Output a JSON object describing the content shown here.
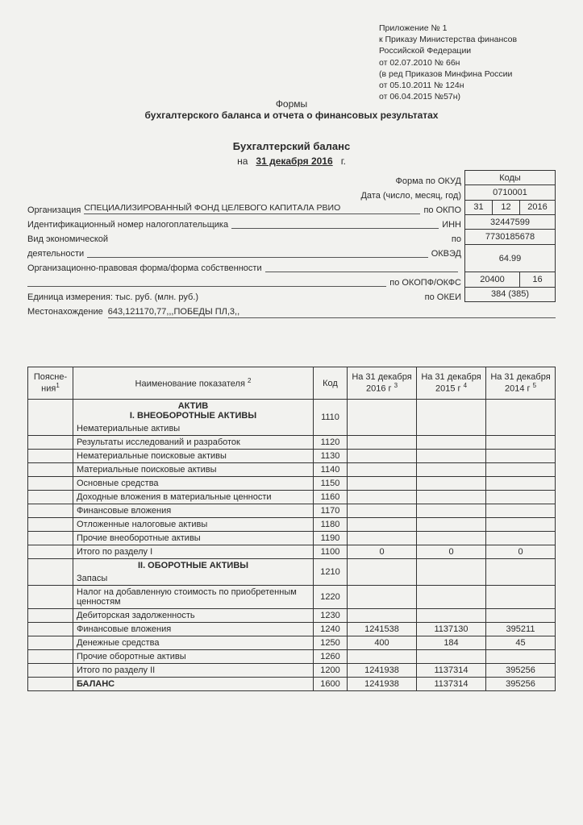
{
  "appendix": {
    "l1": "Приложение № 1",
    "l2": "к Приказу Министерства финансов",
    "l3": "Российской Федерации",
    "l4": "от 02.07.2010 № 66н",
    "l5": "(в ред Приказов Минфина России",
    "l6": "от 05.10.2011 № 124н",
    "l7": "от 06.04.2015 №57н)"
  },
  "form_block": {
    "l1": "Формы",
    "l2": "бухгалтерского баланса и отчета о финансовых результатах"
  },
  "balance_title": "Бухгалтерский баланс",
  "date_line": {
    "prefix": "на",
    "date": "31 декабря   2016",
    "suffix": "г."
  },
  "hdr": {
    "form_okud_label": "Форма по ОКУД",
    "date_label": "Дата (число, месяц, год)",
    "org_label": "Организация",
    "org_value": "СПЕЦИАЛИЗИРОВАННЫЙ ФОНД ЦЕЛЕВОГО КАПИТАЛА РВИО",
    "okpo_label": "по ОКПО",
    "inn_label_full": "Идентификационный номер налогоплательщика",
    "inn_label_code": "ИНН",
    "activity_l1": "Вид экономической",
    "activity_l2": "деятельности",
    "okved_label": "ОКВЭД",
    "po": "по",
    "legal_form_label": "Организационно-правовая форма/форма собственности",
    "okopf_label": "по ОКОПФ/ОКФС",
    "unit_label": "Единица измерения: тыс. руб. (млн. руб.)",
    "okei_label": "по ОКЕИ",
    "loc_label": "Местонахождение",
    "loc_value": "643,121170,77,,,ПОБЕДЫ ПЛ,3,,"
  },
  "codes": {
    "header": "Коды",
    "okud": "0710001",
    "d": "31",
    "m": "12",
    "y": "2016",
    "okpo": "32447599",
    "inn": "7730185678",
    "okved": "64.99",
    "okopf": "20400",
    "okfs": "16",
    "okei": "384 (385)"
  },
  "table": {
    "headers": {
      "note": "Поясне-\nния",
      "name": "Наименование показателя",
      "code": "Код",
      "c1_a": "На 31 декабря",
      "c1_b": "2016 г",
      "c2_a": "На 31 декабря",
      "c2_b": "2015 г",
      "c3_a": "На 31 декабря",
      "c3_b": "2014 г"
    },
    "section1_a": "АКТИВ",
    "section1_b": "I. ВНЕОБОРОТНЫЕ АКТИВЫ",
    "rows1": [
      {
        "name": "Нематериальные активы",
        "code": "1110"
      },
      {
        "name": "Результаты исследований и разработок",
        "code": "1120"
      },
      {
        "name": "Нематериальные поисковые активы",
        "code": "1130"
      },
      {
        "name": "Материальные поисковые активы",
        "code": "1140"
      },
      {
        "name": "Основные средства",
        "code": "1150"
      },
      {
        "name": "Доходные вложения в материальные ценности",
        "code": "1160"
      },
      {
        "name": "Финансовые вложения",
        "code": "1170"
      },
      {
        "name": "Отложенные налоговые активы",
        "code": "1180"
      },
      {
        "name": "Прочие внеоборотные активы",
        "code": "1190"
      }
    ],
    "total1": {
      "name": "Итого по разделу I",
      "code": "1100",
      "v1": "0",
      "v2": "0",
      "v3": "0"
    },
    "section2": "II. ОБОРОТНЫЕ АКТИВЫ",
    "rows2": [
      {
        "name": "Запасы",
        "code": "1210"
      },
      {
        "name": "Налог на добавленную стоимость по приобретенным ценностям",
        "code": "1220"
      },
      {
        "name": "Дебиторская задолженность",
        "code": "1230"
      },
      {
        "name": "Финансовые вложения",
        "code": "1240",
        "v1": "1241538",
        "v2": "1137130",
        "v3": "395211"
      },
      {
        "name": "Денежные средства",
        "code": "1250",
        "v1": "400",
        "v2": "184",
        "v3": "45"
      },
      {
        "name": "Прочие оборотные активы",
        "code": "1260"
      }
    ],
    "total2": {
      "name": "Итого по разделу II",
      "code": "1200",
      "v1": "1241938",
      "v2": "1137314",
      "v3": "395256"
    },
    "balance": {
      "name": "БАЛАНС",
      "code": "1600",
      "v1": "1241938",
      "v2": "1137314",
      "v3": "395256"
    }
  }
}
